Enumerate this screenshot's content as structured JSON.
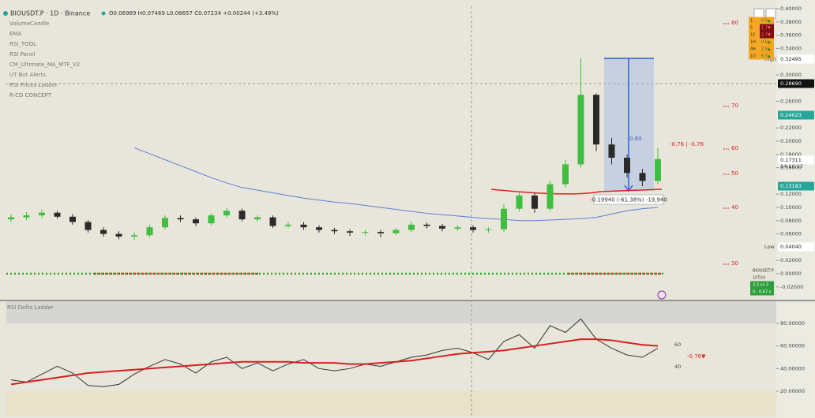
{
  "header": {
    "symbol": "BIOUSDT.P · 1D · Binance",
    "ohlc": "O0.06989 H0.07469 L0.06657 C0.07234 +0.00244 (+3.49%)"
  },
  "indicators": [
    "VolumeCandle",
    "EMA",
    "RSI_TOOL",
    "RSI Panel",
    "CM_Ultimate_MA_MTF_V2",
    "UT Bot Alerts",
    "RSI Prices Ladder",
    "R-CD CONCEPT"
  ],
  "chart_data": [
    {
      "type": "candlestick",
      "ylim": [
        -0.0393,
        0.4036
      ],
      "yticks": [
        {
          "value": 0.4,
          "label": "0.40000"
        },
        {
          "value": 0.38,
          "label": "0.38000"
        },
        {
          "value": 0.36,
          "label": "0.36000"
        },
        {
          "value": 0.34,
          "label": "0.34000"
        },
        {
          "value": 0.3,
          "label": "0.30000"
        },
        {
          "value": 0.26,
          "label": "0.26000"
        },
        {
          "value": 0.22,
          "label": "0.22000"
        },
        {
          "value": 0.2,
          "label": "0.20000"
        },
        {
          "value": 0.18,
          "label": "0.18000"
        },
        {
          "value": 0.16,
          "label": "0.16000"
        },
        {
          "value": 0.12,
          "label": "0.12000"
        },
        {
          "value": 0.1,
          "label": "0.10000"
        },
        {
          "value": 0.08,
          "label": "0.08000"
        },
        {
          "value": 0.06,
          "label": "0.06000"
        },
        {
          "value": 0.02,
          "label": "0.02000"
        },
        {
          "value": 0,
          "label": "0.00000"
        },
        {
          "value": -0.02,
          "label": "-0.02000"
        }
      ],
      "up_color": "#3fbf3f",
      "down_color": "#2a2a2a",
      "open": [
        0.082,
        0.085,
        0.088,
        0.092,
        0.086,
        0.078,
        0.066,
        0.06,
        0.056,
        0.058,
        0.07,
        0.084,
        0.082,
        0.076,
        0.088,
        0.095,
        0.082,
        0.085,
        0.072,
        0.074,
        0.07,
        0.066,
        0.064,
        0.062,
        0.063,
        0.061,
        0.066,
        0.074,
        0.072,
        0.068,
        0.07,
        0.066,
        0.067,
        0.098,
        0.118,
        0.098,
        0.135,
        0.165,
        0.27,
        0.195,
        0.175,
        0.152,
        0.14
      ],
      "high": [
        0.09,
        0.093,
        0.097,
        0.095,
        0.09,
        0.081,
        0.07,
        0.064,
        0.062,
        0.074,
        0.088,
        0.088,
        0.085,
        0.091,
        0.099,
        0.098,
        0.088,
        0.088,
        0.078,
        0.078,
        0.073,
        0.069,
        0.067,
        0.066,
        0.066,
        0.069,
        0.078,
        0.077,
        0.075,
        0.073,
        0.073,
        0.07,
        0.105,
        0.125,
        0.122,
        0.14,
        0.172,
        0.32495,
        0.272,
        0.205,
        0.18,
        0.158,
        0.19
      ],
      "low": [
        0.078,
        0.081,
        0.084,
        0.083,
        0.074,
        0.062,
        0.056,
        0.052,
        0.051,
        0.055,
        0.067,
        0.078,
        0.072,
        0.073,
        0.084,
        0.079,
        0.079,
        0.069,
        0.069,
        0.066,
        0.062,
        0.06,
        0.057,
        0.058,
        0.055,
        0.058,
        0.063,
        0.068,
        0.064,
        0.065,
        0.062,
        0.062,
        0.063,
        0.094,
        0.092,
        0.094,
        0.13,
        0.16,
        0.185,
        0.165,
        0.145,
        0.132,
        0.135
      ],
      "close": [
        0.085,
        0.088,
        0.092,
        0.086,
        0.078,
        0.066,
        0.06,
        0.056,
        0.058,
        0.07,
        0.084,
        0.082,
        0.076,
        0.088,
        0.095,
        0.082,
        0.085,
        0.072,
        0.074,
        0.07,
        0.066,
        0.064,
        0.062,
        0.063,
        0.061,
        0.066,
        0.074,
        0.072,
        0.068,
        0.07,
        0.066,
        0.067,
        0.098,
        0.118,
        0.098,
        0.135,
        0.165,
        0.27,
        0.195,
        0.175,
        0.152,
        0.14,
        0.17311
      ],
      "overlay": {
        "color": "#5b7fd6",
        "values": [
          null,
          null,
          null,
          null,
          null,
          null,
          null,
          null,
          0.19,
          0.181,
          0.172,
          0.163,
          0.154,
          0.145,
          0.137,
          0.13,
          0.126,
          0.122,
          0.118,
          0.114,
          0.111,
          0.108,
          0.106,
          0.103,
          0.1,
          0.097,
          0.094,
          0.091,
          0.089,
          0.087,
          0.085,
          0.083,
          0.082,
          0.08,
          0.08,
          0.081,
          0.082,
          0.083,
          0.085,
          0.09,
          0.095,
          0.098,
          0.1
        ]
      }
    },
    {
      "type": "line",
      "title": "RSI Delta Ladder",
      "ylim": [
        -2.4,
        99.6
      ],
      "yticks": [
        {
          "value": 80,
          "label": "80.00000"
        },
        {
          "value": 60,
          "label": "60.00000"
        },
        {
          "value": 40,
          "label": "40.00000"
        },
        {
          "value": 20,
          "label": "20.00000"
        }
      ],
      "series": [
        {
          "color": "#333333",
          "values": [
            30,
            28,
            35,
            42,
            36,
            25,
            24,
            26,
            35,
            42,
            48,
            44,
            36,
            46,
            50,
            40,
            45,
            38,
            44,
            48,
            40,
            38,
            40,
            44,
            42,
            46,
            50,
            52,
            56,
            58,
            54,
            48,
            64,
            70,
            58,
            78,
            72,
            84,
            66,
            58,
            52,
            50,
            58
          ]
        },
        {
          "color": "#d62020",
          "values": [
            26,
            28,
            30,
            32,
            34,
            36,
            37,
            38,
            39,
            40,
            41,
            42,
            43,
            44,
            45,
            46,
            46,
            46,
            46,
            45,
            45,
            45,
            44,
            44,
            45,
            46,
            47,
            49,
            51,
            53,
            54,
            55,
            56,
            58,
            60,
            62,
            64,
            66,
            66,
            65,
            63,
            61,
            60
          ]
        }
      ]
    }
  ],
  "levels": [
    "80",
    "70",
    "60",
    "50",
    "40",
    "30"
  ],
  "badges": {
    "high_label": "High",
    "high": "0.32495",
    "cross": "0.28690",
    "green1": "0.24023",
    "last": "0.17311",
    "time_left": "14:16:17",
    "green2": "0.13183",
    "low_label": "Low",
    "low": "0.04040"
  },
  "measure": "-0.19940 (-61.38%) -19,940",
  "annotations": [
    "-0.76 | -0.76",
    "0.60"
  ],
  "timeframe_table": [
    [
      "1",
      "0.9▲"
    ],
    [
      "5",
      "1.7▼"
    ],
    [
      "15",
      "2.7▼"
    ],
    [
      "1H",
      "0.6▲"
    ],
    [
      "4H",
      "2.9▲"
    ],
    [
      "1D",
      "6.3▲"
    ]
  ],
  "info_box": [
    "BIOUSDT.P",
    "10Tick",
    "3.3 vs 3",
    "0 : 0.67 s"
  ],
  "rsi_labels": [
    "60",
    "40",
    "-0.76▼"
  ]
}
